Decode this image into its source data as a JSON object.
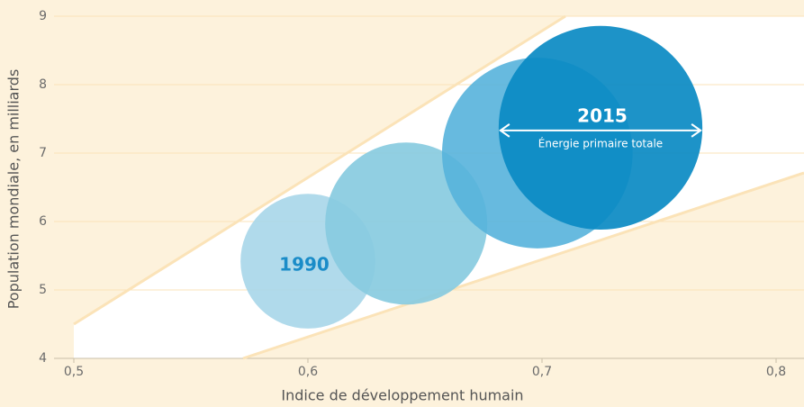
{
  "chart_data": {
    "type": "scatter",
    "xlabel": "Indice de développement humain",
    "ylabel": "Population mondiale, en milliards",
    "x": [
      0.6,
      0.642,
      0.698,
      0.725
    ],
    "values": [
      5.42,
      5.97,
      7.0,
      7.37
    ],
    "sizes": [
      56,
      81,
      112,
      128
    ],
    "colors": [
      "#a9d7e9",
      "#88cbe0",
      "#56b3dc",
      "#0a8ac3"
    ],
    "xlim": [
      0.5,
      0.8
    ],
    "xticks": [
      {
        "value": 0.5,
        "label": "0,5"
      },
      {
        "value": 0.6,
        "label": "0,6"
      },
      {
        "value": 0.7,
        "label": "0,7"
      },
      {
        "value": 0.8,
        "label": "0,8"
      }
    ],
    "ylim": [
      4,
      9
    ],
    "yticks": [
      4,
      5,
      6,
      7,
      8,
      9
    ],
    "grid": true,
    "annotations": [
      "1990",
      "2015",
      "Énergie primaire totale"
    ]
  }
}
